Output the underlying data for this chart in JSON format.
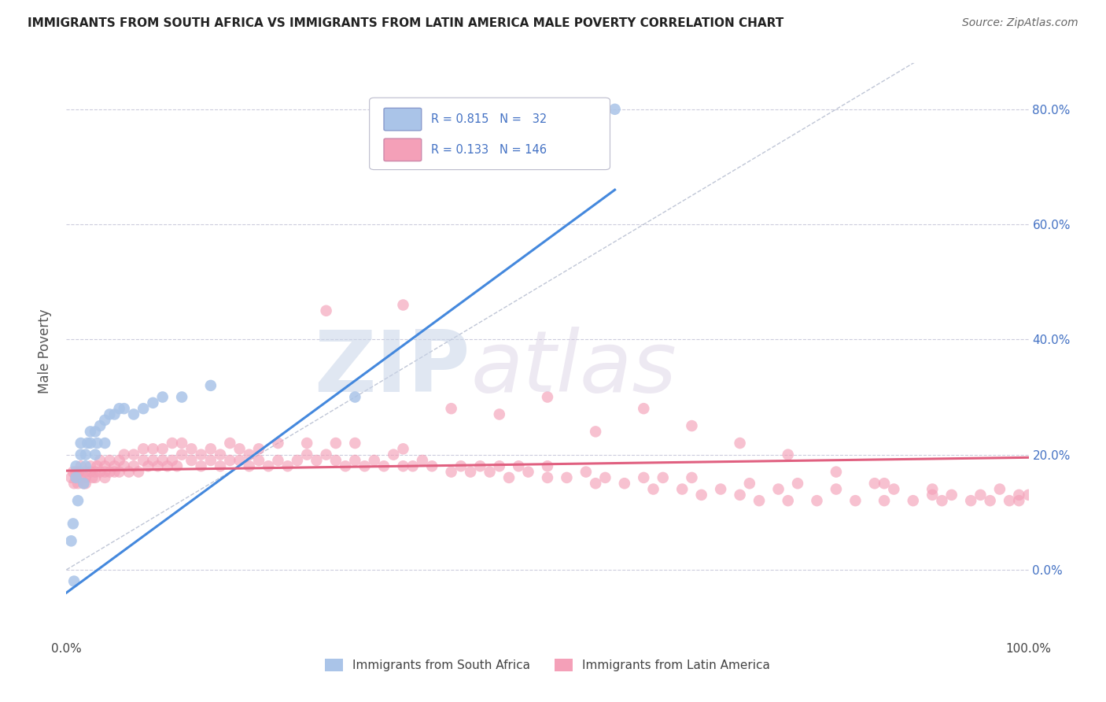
{
  "title": "IMMIGRANTS FROM SOUTH AFRICA VS IMMIGRANTS FROM LATIN AMERICA MALE POVERTY CORRELATION CHART",
  "source": "Source: ZipAtlas.com",
  "ylabel": "Male Poverty",
  "color_sa": "#aac4e8",
  "color_la": "#f4a0b8",
  "line_color_sa": "#4488dd",
  "line_color_la": "#e06080",
  "bg_color": "#ffffff",
  "grid_color": "#ccccdd",
  "xlim": [
    0.0,
    1.0
  ],
  "ylim": [
    -0.12,
    0.88
  ],
  "xticks": [
    0.0,
    0.2,
    0.4,
    0.6,
    0.8,
    1.0
  ],
  "yticks": [
    0.0,
    0.2,
    0.4,
    0.6,
    0.8
  ],
  "xticklabels": [
    "0.0%",
    "20.0%",
    "40.0%",
    "60.0%",
    "80.0%",
    "100.0%"
  ],
  "yticklabels_right": [
    "0.0%",
    "20.0%",
    "40.0%",
    "60.0%",
    "80.0%"
  ],
  "sa_line_x": [
    0.0,
    0.57
  ],
  "sa_line_y": [
    -0.04,
    0.66
  ],
  "la_line_x": [
    0.0,
    1.0
  ],
  "la_line_y": [
    0.172,
    0.195
  ],
  "sa_x": [
    0.005,
    0.007,
    0.008,
    0.01,
    0.01,
    0.012,
    0.015,
    0.015,
    0.018,
    0.02,
    0.02,
    0.022,
    0.025,
    0.025,
    0.03,
    0.03,
    0.032,
    0.035,
    0.04,
    0.04,
    0.045,
    0.05,
    0.055,
    0.06,
    0.07,
    0.08,
    0.09,
    0.1,
    0.12,
    0.15,
    0.3,
    0.57
  ],
  "sa_y": [
    0.05,
    0.08,
    -0.02,
    0.16,
    0.18,
    0.12,
    0.2,
    0.22,
    0.15,
    0.18,
    0.2,
    0.22,
    0.22,
    0.24,
    0.2,
    0.24,
    0.22,
    0.25,
    0.22,
    0.26,
    0.27,
    0.27,
    0.28,
    0.28,
    0.27,
    0.28,
    0.29,
    0.3,
    0.3,
    0.32,
    0.3,
    0.8
  ],
  "la_x": [
    0.005,
    0.007,
    0.008,
    0.01,
    0.01,
    0.012,
    0.013,
    0.015,
    0.015,
    0.018,
    0.02,
    0.02,
    0.02,
    0.025,
    0.025,
    0.027,
    0.03,
    0.03,
    0.032,
    0.035,
    0.035,
    0.04,
    0.04,
    0.04,
    0.045,
    0.045,
    0.05,
    0.05,
    0.055,
    0.055,
    0.06,
    0.06,
    0.065,
    0.07,
    0.07,
    0.075,
    0.08,
    0.08,
    0.085,
    0.09,
    0.09,
    0.095,
    0.1,
    0.1,
    0.105,
    0.11,
    0.11,
    0.115,
    0.12,
    0.12,
    0.13,
    0.13,
    0.14,
    0.14,
    0.15,
    0.15,
    0.16,
    0.16,
    0.17,
    0.17,
    0.18,
    0.18,
    0.19,
    0.19,
    0.2,
    0.2,
    0.21,
    0.22,
    0.22,
    0.23,
    0.24,
    0.25,
    0.25,
    0.26,
    0.27,
    0.28,
    0.28,
    0.29,
    0.3,
    0.3,
    0.31,
    0.32,
    0.33,
    0.34,
    0.35,
    0.35,
    0.36,
    0.37,
    0.38,
    0.4,
    0.41,
    0.42,
    0.43,
    0.44,
    0.45,
    0.46,
    0.47,
    0.48,
    0.5,
    0.5,
    0.52,
    0.54,
    0.55,
    0.56,
    0.58,
    0.6,
    0.61,
    0.62,
    0.64,
    0.65,
    0.66,
    0.68,
    0.7,
    0.71,
    0.72,
    0.74,
    0.75,
    0.76,
    0.78,
    0.8,
    0.82,
    0.84,
    0.85,
    0.86,
    0.88,
    0.9,
    0.91,
    0.92,
    0.94,
    0.95,
    0.96,
    0.97,
    0.98,
    0.99,
    0.99,
    1.0,
    0.35,
    0.4,
    0.45,
    0.5,
    0.55,
    0.27,
    0.6,
    0.65,
    0.7,
    0.75,
    0.8,
    0.85,
    0.9
  ],
  "la_y": [
    0.16,
    0.17,
    0.15,
    0.17,
    0.16,
    0.15,
    0.17,
    0.16,
    0.18,
    0.15,
    0.16,
    0.17,
    0.15,
    0.17,
    0.18,
    0.16,
    0.17,
    0.16,
    0.18,
    0.17,
    0.19,
    0.16,
    0.17,
    0.18,
    0.17,
    0.19,
    0.17,
    0.18,
    0.17,
    0.19,
    0.18,
    0.2,
    0.17,
    0.18,
    0.2,
    0.17,
    0.19,
    0.21,
    0.18,
    0.19,
    0.21,
    0.18,
    0.19,
    0.21,
    0.18,
    0.19,
    0.22,
    0.18,
    0.2,
    0.22,
    0.19,
    0.21,
    0.18,
    0.2,
    0.19,
    0.21,
    0.18,
    0.2,
    0.19,
    0.22,
    0.19,
    0.21,
    0.18,
    0.2,
    0.19,
    0.21,
    0.18,
    0.19,
    0.22,
    0.18,
    0.19,
    0.2,
    0.22,
    0.19,
    0.2,
    0.19,
    0.22,
    0.18,
    0.19,
    0.22,
    0.18,
    0.19,
    0.18,
    0.2,
    0.18,
    0.21,
    0.18,
    0.19,
    0.18,
    0.17,
    0.18,
    0.17,
    0.18,
    0.17,
    0.18,
    0.16,
    0.18,
    0.17,
    0.16,
    0.18,
    0.16,
    0.17,
    0.15,
    0.16,
    0.15,
    0.16,
    0.14,
    0.16,
    0.14,
    0.16,
    0.13,
    0.14,
    0.13,
    0.15,
    0.12,
    0.14,
    0.12,
    0.15,
    0.12,
    0.14,
    0.12,
    0.15,
    0.12,
    0.14,
    0.12,
    0.14,
    0.12,
    0.13,
    0.12,
    0.13,
    0.12,
    0.14,
    0.12,
    0.13,
    0.12,
    0.13,
    0.46,
    0.28,
    0.27,
    0.3,
    0.24,
    0.45,
    0.28,
    0.25,
    0.22,
    0.2,
    0.17,
    0.15,
    0.13
  ]
}
